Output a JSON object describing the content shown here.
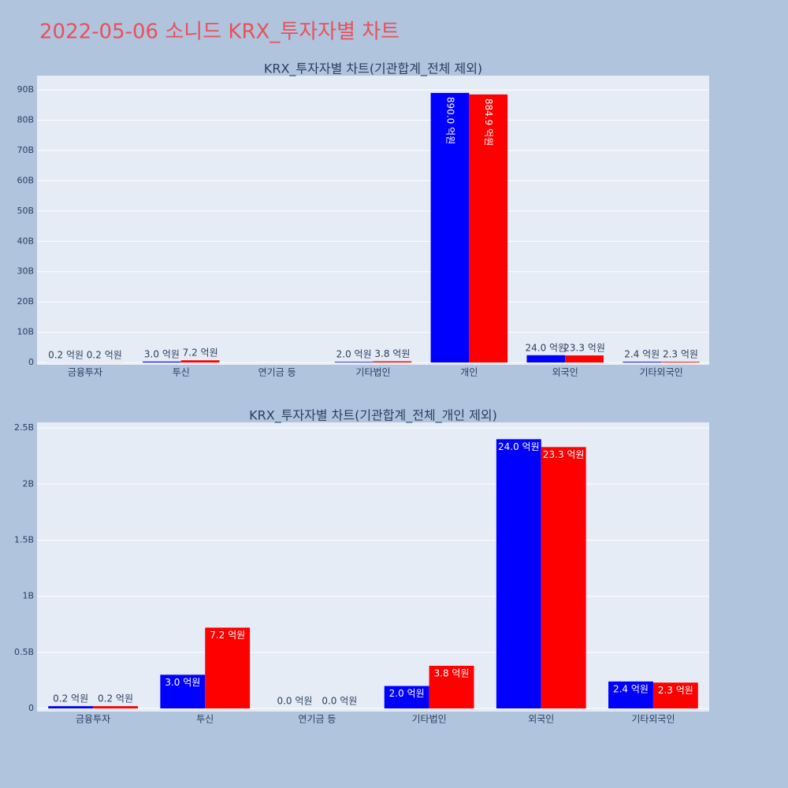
{
  "title": "2022-05-06 소니드 KRX_투자자별 차트",
  "chart_data": [
    {
      "type": "bar",
      "title": "KRX_투자자별 차트(기관합계_전체 제외)",
      "categories": [
        "금융투자",
        "투신",
        "연기금 등",
        "기타법인",
        "개인",
        "외국인",
        "기타외국인"
      ],
      "series": [
        {
          "color": "#0000ff",
          "values": [
            20000000,
            300000000,
            0,
            200000000,
            89000000000,
            2400000000,
            240000000
          ],
          "value_labels": [
            "0.2 억원",
            "3.0 억원",
            null,
            "2.0 억원",
            "890.0 억원",
            "24.0 억원",
            "2.4 억원"
          ]
        },
        {
          "color": "#ff0000",
          "values": [
            20000000,
            720000000,
            0,
            380000000,
            88490000000,
            2330000000,
            230000000
          ],
          "value_labels": [
            "0.2 억원",
            "7.2 억원",
            null,
            "3.8 억원",
            "884.9 억원",
            "23.3 억원",
            "2.3 억원"
          ]
        }
      ],
      "ylim": [
        0,
        94700000000
      ],
      "yticks": [
        0,
        {
          "value": 10000000000,
          "label": "10B"
        },
        {
          "value": 20000000000,
          "label": "20B"
        },
        {
          "value": 30000000000,
          "label": "30B"
        },
        {
          "value": 40000000000,
          "label": "40B"
        },
        {
          "value": 50000000000,
          "label": "50B"
        },
        {
          "value": 60000000000,
          "label": "60B"
        },
        {
          "value": 70000000000,
          "label": "70B"
        },
        {
          "value": 80000000000,
          "label": "80B"
        },
        {
          "value": 90000000000,
          "label": "90B"
        }
      ],
      "grid": true
    },
    {
      "type": "bar",
      "title": "KRX_투자자별 차트(기관합계_전체_개인 제외)",
      "categories": [
        "금융투자",
        "투신",
        "연기금 등",
        "기타법인",
        "외국인",
        "기타외국인"
      ],
      "series": [
        {
          "color": "#0000ff",
          "values": [
            20000000,
            300000000,
            0,
            200000000,
            2400000000,
            240000000
          ],
          "value_labels": [
            "0.2 억원",
            "3.0 억원",
            "0.0 억원",
            "2.0 억원",
            "24.0 억원",
            "2.4 억원"
          ]
        },
        {
          "color": "#ff0000",
          "values": [
            20000000,
            720000000,
            0,
            380000000,
            2330000000,
            230000000
          ],
          "value_labels": [
            "0.2 억원",
            "7.2 억원",
            "0.0 억원",
            "3.8 억원",
            "23.3 억원",
            "2.3 억원"
          ]
        }
      ],
      "ylim": [
        0,
        2550000000
      ],
      "yticks": [
        0,
        {
          "value": 500000000,
          "label": "0.5B"
        },
        {
          "value": 1000000000,
          "label": "1B"
        },
        {
          "value": 1500000000,
          "label": "1.5B"
        },
        {
          "value": 2000000000,
          "label": "2B"
        },
        {
          "value": 2500000000,
          "label": "2.5B"
        }
      ],
      "grid": true
    }
  ]
}
